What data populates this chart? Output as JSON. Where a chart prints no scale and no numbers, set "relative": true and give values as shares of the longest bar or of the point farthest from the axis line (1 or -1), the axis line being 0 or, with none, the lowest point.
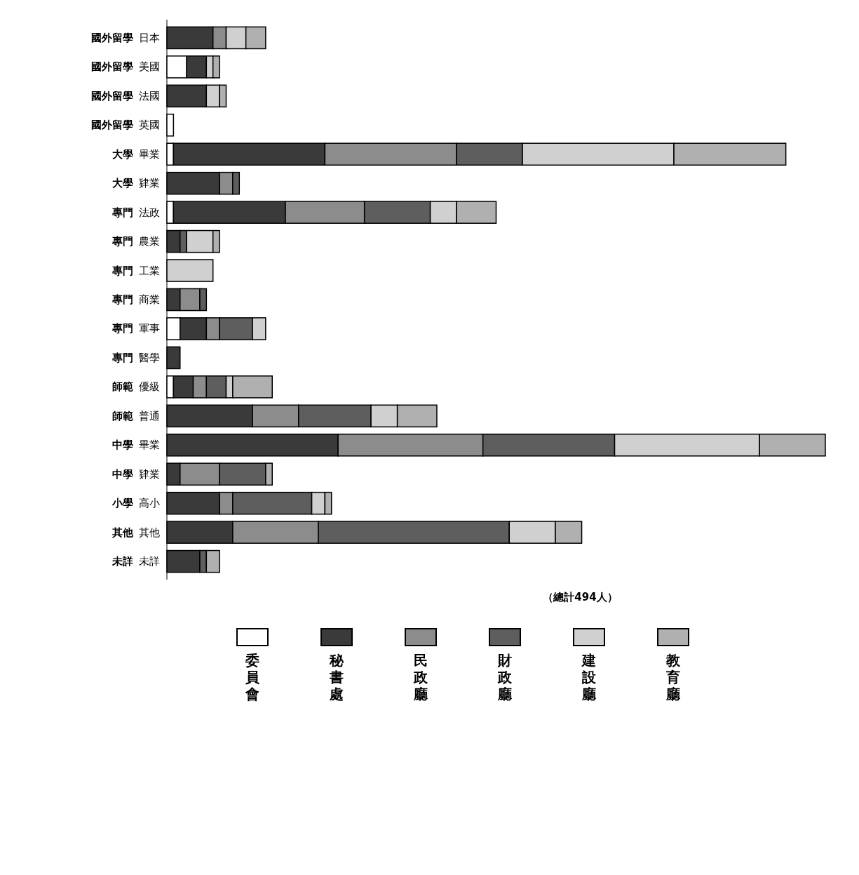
{
  "chart_data": {
    "type": "bar",
    "orientation": "horizontal",
    "stacked": true,
    "relative": true,
    "legend": "bottom",
    "annotations": [
      "（總計494人）"
    ],
    "categories": [
      "國外留學 日本",
      "國外留學 美國",
      "國外留學 法國",
      "國外留學 英國",
      "大學 畢業",
      "大學 肄業",
      "專門 法政",
      "專門 農業",
      "專門 工業",
      "專門 商業",
      "專門 軍事",
      "專門 醫學",
      "師範 優級",
      "師範 普通",
      "中學 畢業",
      "中學 肄業",
      "小學 高小",
      "其他 其他",
      "未詳 未詳"
    ],
    "series": [
      {
        "name": "委員會",
        "color": "#ffffff",
        "values": [
          0,
          0.03,
          0,
          0.01,
          0.01,
          0,
          0.01,
          0,
          0,
          0,
          0.02,
          0,
          0.01,
          0,
          0,
          0,
          0,
          0,
          0
        ]
      },
      {
        "name": "秘書處",
        "color": "#3a3a3a",
        "values": [
          0.07,
          0.03,
          0.06,
          0,
          0.23,
          0.08,
          0.17,
          0.02,
          0,
          0.02,
          0.04,
          0.02,
          0.03,
          0.13,
          0.26,
          0.02,
          0.08,
          0.1,
          0.05
        ]
      },
      {
        "name": "民政廳",
        "color": "#8c8c8c",
        "values": [
          0.02,
          0,
          0,
          0,
          0.2,
          0.02,
          0.12,
          0,
          0,
          0.03,
          0.02,
          0,
          0.02,
          0.07,
          0.22,
          0.06,
          0.02,
          0.13,
          0
        ]
      },
      {
        "name": "財政廳",
        "color": "#5e5e5e",
        "values": [
          0,
          0,
          0,
          0,
          0.1,
          0.01,
          0.1,
          0.01,
          0,
          0.01,
          0.05,
          0,
          0.03,
          0.11,
          0.2,
          0.07,
          0.12,
          0.29,
          0.01
        ]
      },
      {
        "name": "建設廳",
        "color": "#d0d0d0",
        "values": [
          0.03,
          0.01,
          0.02,
          0,
          0.23,
          0,
          0.04,
          0.04,
          0.07,
          0,
          0.02,
          0,
          0.01,
          0.04,
          0.22,
          0,
          0.02,
          0.07,
          0
        ]
      },
      {
        "name": "教育廳",
        "color": "#b0b0b0",
        "values": [
          0.03,
          0.01,
          0.01,
          0,
          0.17,
          0,
          0.06,
          0.01,
          0,
          0,
          0,
          0,
          0.06,
          0.06,
          0.1,
          0.01,
          0.01,
          0.04,
          0.02
        ]
      }
    ]
  }
}
